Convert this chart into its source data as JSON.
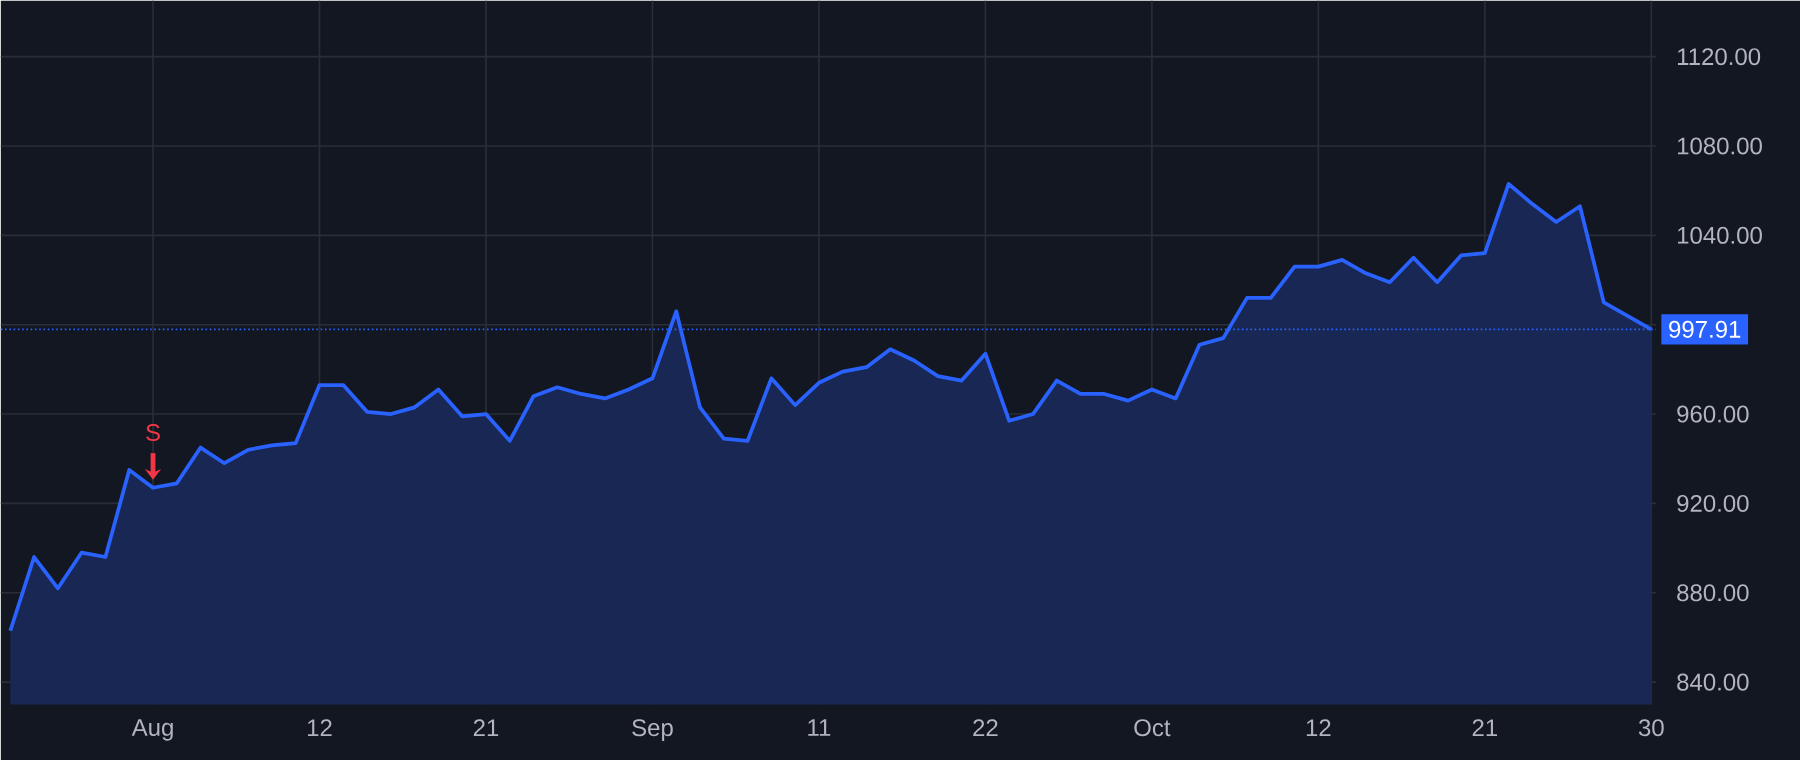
{
  "chart_data": {
    "type": "area",
    "categories": [
      null,
      null,
      null,
      null,
      null,
      null,
      "Aug",
      null,
      null,
      null,
      null,
      null,
      null,
      "12",
      null,
      null,
      null,
      null,
      null,
      null,
      "21",
      null,
      null,
      null,
      null,
      null,
      null,
      "Sep",
      null,
      null,
      null,
      null,
      null,
      null,
      "11",
      null,
      null,
      null,
      null,
      null,
      null,
      "22",
      null,
      null,
      null,
      null,
      null,
      null,
      "Oct",
      null,
      null,
      null,
      null,
      null,
      null,
      "12",
      null,
      null,
      null,
      null,
      null,
      null,
      "21",
      null,
      null,
      null,
      null,
      null,
      null,
      "30"
    ],
    "series": [
      {
        "color": "#2962ff",
        "values": [
          863,
          896,
          882,
          898,
          896,
          935,
          927,
          929,
          945,
          938,
          944,
          946,
          947,
          973,
          973,
          961,
          960,
          963,
          971,
          959,
          960,
          948,
          968,
          972,
          969,
          967,
          971,
          976,
          1006,
          963,
          949,
          948,
          976,
          964,
          974,
          979,
          981,
          989,
          984,
          977,
          975,
          987,
          957,
          960,
          975,
          969,
          969,
          966,
          971,
          967,
          991,
          994,
          1012,
          1012,
          1026,
          1026,
          1029,
          1023,
          1019,
          1030,
          1019,
          1031,
          1032,
          1063,
          1054,
          1046,
          1053,
          1010,
          1004,
          997.91
        ]
      }
    ],
    "ylim": [
      830,
      1145
    ],
    "yticks": [
      {
        "value": 840,
        "label": "840.00"
      },
      {
        "value": 880,
        "label": "880.00"
      },
      {
        "value": 920,
        "label": "920.00"
      },
      {
        "value": 960,
        "label": "960.00"
      },
      {
        "value": 1000,
        "label": null
      },
      {
        "value": 1040,
        "label": "1040.00"
      },
      {
        "value": 1080,
        "label": "1080.00"
      },
      {
        "value": 1120,
        "label": "1120.00"
      }
    ],
    "ref_lines": [
      {
        "axis": "y",
        "value": 997.91,
        "label": "997.91",
        "color": "#2962ff",
        "line_style": "dotted"
      }
    ],
    "annotations": [
      {
        "text": "S",
        "x": "Aug",
        "y": 927
      }
    ],
    "grid": true,
    "marker": "none",
    "line_style": "solid"
  }
}
